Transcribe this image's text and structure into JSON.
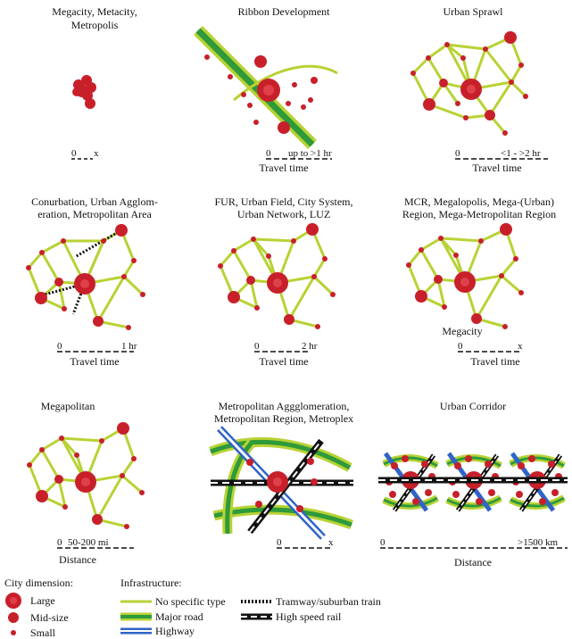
{
  "panels": [
    {
      "id": "megacity",
      "title": [
        "Megacity, Metacity,",
        "Metropolis"
      ],
      "scale": {
        "start": "0",
        "end": "x"
      },
      "caption": ""
    },
    {
      "id": "ribbon",
      "title": [
        "Ribbon Development"
      ],
      "scale": {
        "start": "0",
        "end": "up to >1 hr"
      },
      "caption": "Travel time"
    },
    {
      "id": "sprawl",
      "title": [
        "Urban Sprawl"
      ],
      "scale": {
        "start": "0",
        "end": "<1 - >2 hr"
      },
      "caption": "Travel time"
    },
    {
      "id": "conurbation",
      "title": [
        "Conurbation, Urban Agglom-",
        "eration, Metropolitan Area"
      ],
      "scale": {
        "start": "0",
        "end": "1 hr"
      },
      "caption": "Travel time"
    },
    {
      "id": "fur",
      "title": [
        "FUR, Urban Field, City System,",
        "Urban Network, LUZ"
      ],
      "scale": {
        "start": "0",
        "end": "2 hr"
      },
      "caption": "Travel time"
    },
    {
      "id": "mcr",
      "title": [
        "MCR, Megalopolis, Mega-(Urban)",
        "Region, Mega-Metropolitan Region"
      ],
      "scale": {
        "start": "0",
        "end": "x"
      },
      "caption": "Travel time",
      "annotation": "Megacity"
    },
    {
      "id": "megapolitan",
      "title": [
        "Megapolitan"
      ],
      "scale": {
        "start": "0",
        "end": "50-200 mi"
      },
      "caption": "Distance"
    },
    {
      "id": "metroagg",
      "title": [
        "Metropolitan Aggglomeration,",
        "Metropolitan Region, Metroplex"
      ],
      "scale": {
        "start": "0",
        "end": "x"
      },
      "caption": ""
    },
    {
      "id": "corridor",
      "title": [
        "Urban Corridor"
      ],
      "scale": {
        "start": "0",
        "end": ">1500 km"
      },
      "caption": "Distance"
    }
  ],
  "legend": {
    "city_title": "City dimension:",
    "city_items": [
      "Large",
      "Mid-size",
      "Small"
    ],
    "infra_title": "Infrastructure:",
    "infra_items": [
      "No specific type",
      "Major road",
      "Highway",
      "Tramway/suburban train",
      "High speed rail"
    ]
  },
  "colors": {
    "city": "#c8202a",
    "city_core": "#e0404a",
    "link": "#b8d235",
    "major_road": "#2e9a3a",
    "highway": "#2f64c8",
    "rail": "#111111"
  }
}
